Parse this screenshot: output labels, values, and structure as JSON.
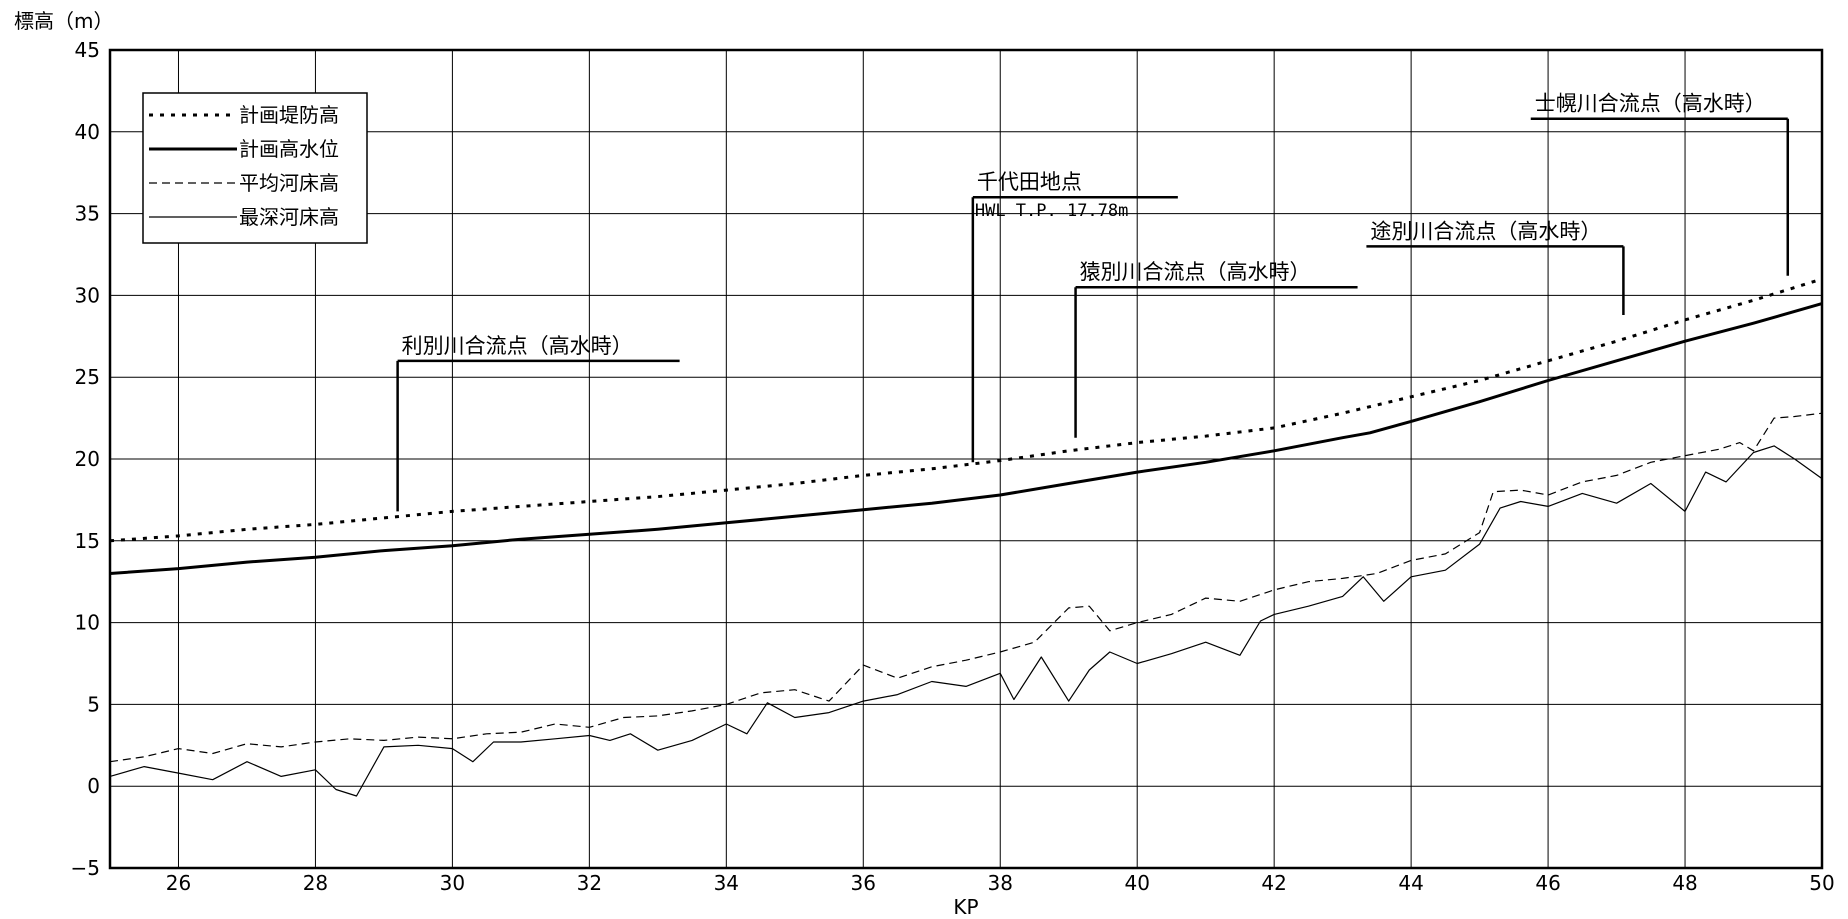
{
  "chart_data": {
    "type": "line",
    "title": "",
    "xlabel": "KP",
    "ylabel": "標高（m）",
    "xlim": [
      25,
      50
    ],
    "ylim": [
      -5,
      45
    ],
    "xticks": [
      26,
      28,
      30,
      32,
      34,
      36,
      38,
      40,
      42,
      44,
      46,
      48,
      50
    ],
    "yticks": [
      -5,
      0,
      5,
      10,
      15,
      20,
      25,
      30,
      35,
      40,
      45
    ],
    "grid": true,
    "legend_position": "top-left",
    "series": [
      {
        "name": "計画堤防高",
        "style": "dotted-thick",
        "color": "#000000",
        "x": [
          25,
          26,
          27,
          28,
          29,
          30,
          31,
          32,
          33,
          34,
          35,
          36,
          37,
          38,
          39,
          40,
          41,
          42,
          43,
          44,
          45,
          46,
          47,
          48,
          49,
          50
        ],
        "y": [
          15.0,
          15.3,
          15.7,
          16.0,
          16.4,
          16.8,
          17.1,
          17.4,
          17.7,
          18.1,
          18.5,
          19.0,
          19.4,
          19.9,
          20.5,
          21.0,
          21.4,
          21.9,
          22.8,
          23.8,
          24.8,
          26.0,
          27.2,
          28.5,
          29.7,
          31.0
        ]
      },
      {
        "name": "計画高水位",
        "style": "solid-thick",
        "color": "#000000",
        "x": [
          25,
          26,
          27,
          28,
          29,
          30,
          31,
          32,
          33,
          34,
          35,
          36,
          37,
          38,
          39,
          40,
          41,
          42,
          43,
          43.4,
          44,
          45,
          46,
          47,
          48,
          49,
          50
        ],
        "y": [
          13.0,
          13.3,
          13.7,
          14.0,
          14.4,
          14.7,
          15.1,
          15.4,
          15.7,
          16.1,
          16.5,
          16.9,
          17.3,
          17.8,
          18.5,
          19.2,
          19.8,
          20.5,
          21.3,
          21.6,
          22.3,
          23.5,
          24.8,
          26.0,
          27.2,
          28.3,
          29.5
        ]
      },
      {
        "name": "平均河床高",
        "style": "dashed-thin",
        "color": "#000000",
        "x": [
          25,
          25.5,
          26,
          26.5,
          27,
          27.5,
          28,
          28.5,
          29,
          29.5,
          30,
          30.5,
          31,
          31.5,
          32,
          32.5,
          33,
          33.5,
          34,
          34.5,
          35,
          35.5,
          36,
          36.5,
          37,
          37.5,
          38,
          38.5,
          39,
          39.3,
          39.6,
          40,
          40.5,
          41,
          41.5,
          42,
          42.5,
          43,
          43.5,
          44,
          44.5,
          45,
          45.2,
          45.6,
          46,
          46.5,
          47,
          47.5,
          48,
          48.5,
          48.8,
          49,
          49.3,
          49.6,
          50
        ],
        "y": [
          1.5,
          1.8,
          2.3,
          2.0,
          2.6,
          2.4,
          2.7,
          2.9,
          2.8,
          3.0,
          2.9,
          3.2,
          3.3,
          3.8,
          3.6,
          4.2,
          4.3,
          4.6,
          5.0,
          5.7,
          5.9,
          5.2,
          7.4,
          6.6,
          7.3,
          7.7,
          8.2,
          8.8,
          10.9,
          11.0,
          9.5,
          10.0,
          10.5,
          11.5,
          11.3,
          12.0,
          12.5,
          12.7,
          13.0,
          13.8,
          14.2,
          15.5,
          18.0,
          18.1,
          17.8,
          18.6,
          19.0,
          19.8,
          20.2,
          20.6,
          21.0,
          20.5,
          22.5,
          22.6,
          22.8
        ]
      },
      {
        "name": "最深河床高",
        "style": "solid-thin",
        "color": "#000000",
        "x": [
          25,
          25.5,
          26,
          26.5,
          27,
          27.5,
          28,
          28.3,
          28.6,
          29,
          29.5,
          30,
          30.3,
          30.6,
          31,
          31.5,
          32,
          32.3,
          32.6,
          33,
          33.5,
          34,
          34.3,
          34.6,
          35,
          35.5,
          36,
          36.5,
          37,
          37.5,
          38,
          38.2,
          38.6,
          39,
          39.3,
          39.6,
          40,
          40.5,
          41,
          41.5,
          41.8,
          42,
          42.5,
          43,
          43.3,
          43.6,
          44,
          44.5,
          45,
          45.3,
          45.6,
          46,
          46.5,
          47,
          47.5,
          48,
          48.3,
          48.6,
          49,
          49.3,
          49.6,
          50
        ],
        "y": [
          0.6,
          1.2,
          0.8,
          0.4,
          1.5,
          0.6,
          1.0,
          -0.2,
          -0.6,
          2.4,
          2.5,
          2.3,
          1.5,
          2.7,
          2.7,
          2.9,
          3.1,
          2.8,
          3.2,
          2.2,
          2.8,
          3.8,
          3.2,
          5.1,
          4.2,
          4.5,
          5.2,
          5.6,
          6.4,
          6.1,
          6.9,
          5.3,
          7.9,
          5.2,
          7.1,
          8.2,
          7.5,
          8.1,
          8.8,
          8.0,
          10.1,
          10.5,
          11.0,
          11.6,
          12.8,
          11.3,
          12.8,
          13.2,
          14.8,
          17.0,
          17.4,
          17.1,
          17.9,
          17.3,
          18.5,
          16.8,
          19.2,
          18.6,
          20.4,
          20.8,
          20.0,
          18.8
        ]
      }
    ],
    "annotations": [
      {
        "text": "利別川合流点（高水時）",
        "x": 29.2,
        "y": 16.8,
        "label_y": 26
      },
      {
        "text": "千代田地点",
        "subtext": "HWL T.P. 17.78m",
        "x": 37.6,
        "y": 19.8,
        "label_y": 36
      },
      {
        "text": "猿別川合流点（高水時）",
        "x": 39.1,
        "y": 21.3,
        "label_y": 30.5
      },
      {
        "text": "途別川合流点（高水時）",
        "x": 47.1,
        "y": 28.8,
        "label_y": 33
      },
      {
        "text": "士幌川合流点（高水時）",
        "x": 49.5,
        "y": 31.2,
        "label_y": 40.8
      }
    ]
  }
}
